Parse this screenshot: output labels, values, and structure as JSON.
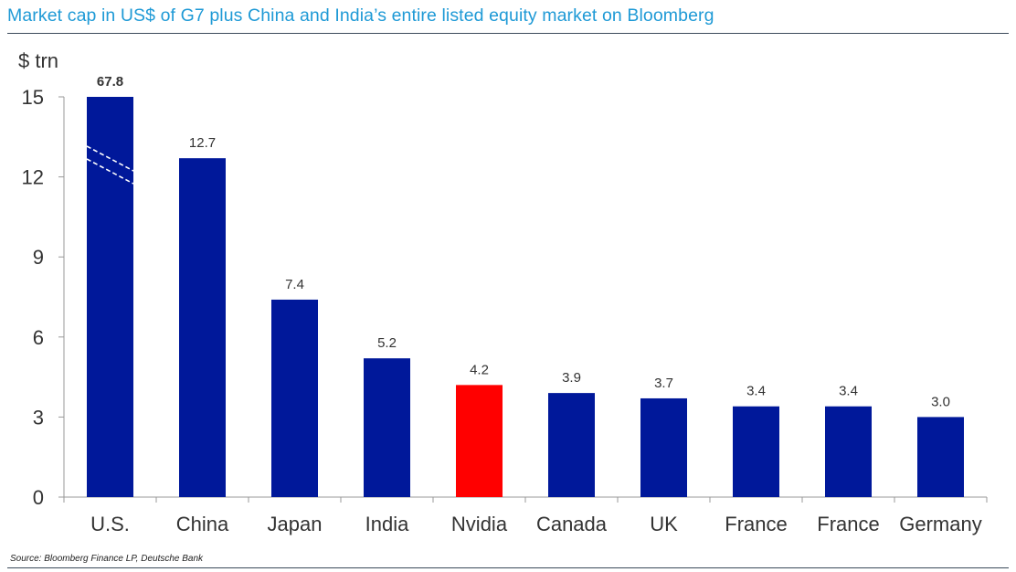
{
  "title": "Market cap in US$ of G7 plus China and India’s entire listed equity market on Bloomberg",
  "source": "Source: Bloomberg Finance LP, Deutsche Bank",
  "chart_data": {
    "type": "bar",
    "unit_label": "$ trn",
    "categories": [
      "U.S.",
      "China",
      "Japan",
      "India",
      "Nvidia",
      "Canada",
      "UK",
      "France",
      "France",
      "Germany"
    ],
    "values": [
      67.8,
      12.7,
      7.4,
      5.2,
      4.2,
      3.9,
      3.7,
      3.4,
      3.4,
      3.0
    ],
    "value_labels": [
      "67.8",
      "12.7",
      "7.4",
      "5.2",
      "4.2",
      "3.9",
      "3.7",
      "3.4",
      "3.4",
      "3.0"
    ],
    "colors": [
      "#00189a",
      "#00189a",
      "#00189a",
      "#00189a",
      "#ff0000",
      "#00189a",
      "#00189a",
      "#00189a",
      "#00189a",
      "#00189a"
    ],
    "truncated_bar": "U.S.",
    "truncated_at": 15,
    "ylim": [
      0,
      15
    ],
    "yticks": [
      0,
      3,
      6,
      9,
      12,
      15
    ],
    "grid": false,
    "legend": "none"
  }
}
